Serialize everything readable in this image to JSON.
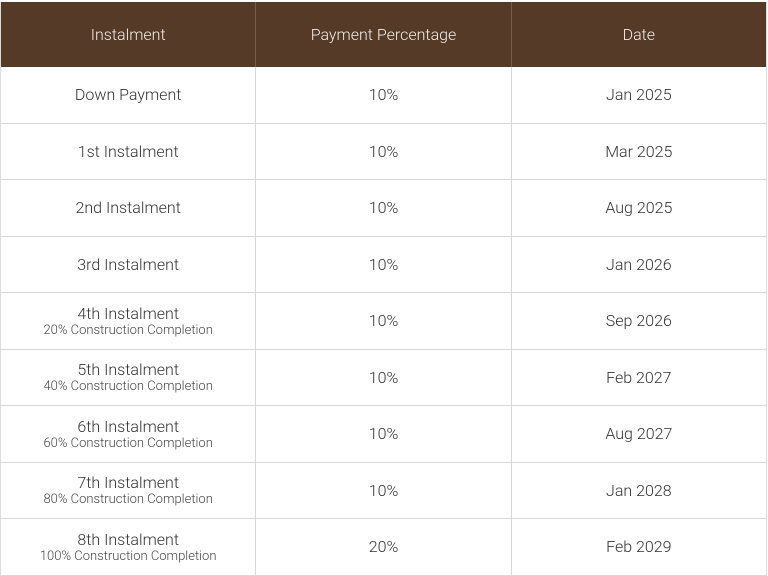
{
  "table": {
    "header": [
      "Instalment",
      "Payment Percentage",
      "Date"
    ],
    "rows": [
      {
        "instalment": "Down Payment",
        "percentage": "10%",
        "date": "Jan 2025"
      },
      {
        "instalment": "1st Instalment",
        "percentage": "10%",
        "date": "Mar 2025"
      },
      {
        "instalment": "2nd Instalment",
        "percentage": "10%",
        "date": "Aug 2025"
      },
      {
        "instalment": "3rd Instalment",
        "percentage": "10%",
        "date": "Jan 2026"
      },
      {
        "instalment": "4th Instalment",
        "note": "20% Construction Completion",
        "percentage": "10%",
        "date": "Sep 2026"
      },
      {
        "instalment": "5th Instalment",
        "note": "40% Construction Completion",
        "percentage": "10%",
        "date": "Feb 2027"
      },
      {
        "instalment": "6th Instalment",
        "note": "60% Construction Completion",
        "percentage": "10%",
        "date": "Aug 2027"
      },
      {
        "instalment": "7th Instalment",
        "note": "80% Construction Completion",
        "percentage": "10%",
        "date": "Jan 2028"
      },
      {
        "instalment": "8th Instalment",
        "note": "100% Construction Completion",
        "percentage": "20%",
        "date": "Feb 2029"
      }
    ]
  }
}
